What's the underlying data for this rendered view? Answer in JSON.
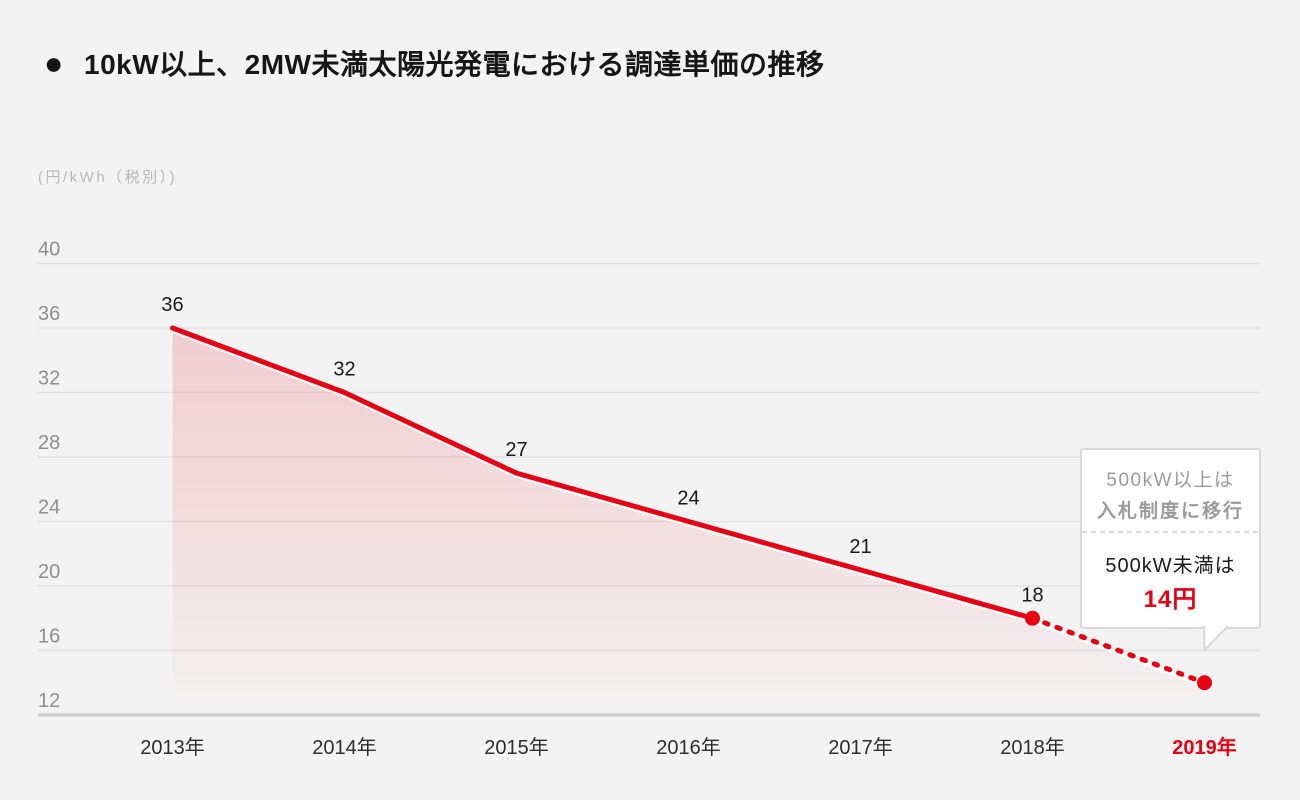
{
  "page": {
    "background_color": "#f3f3f3",
    "accent_color": "#e60012"
  },
  "header": {
    "bullet": "●",
    "title": "10kW以上、2MW未満太陽光発電における調達単価の推移"
  },
  "chart_data": {
    "type": "line",
    "title": "10kW以上、2MW未満太陽光発電における調達単価の推移",
    "ylabel": "(円/kWh（税別）)",
    "categories": [
      "2013年",
      "2014年",
      "2015年",
      "2016年",
      "2017年",
      "2018年",
      "2019年"
    ],
    "values": [
      36,
      32,
      27,
      24,
      21,
      18,
      14
    ],
    "labeled_point_count": 6,
    "solid_until_index": 5,
    "dotted_segment": [
      5,
      6
    ],
    "end_dot_indices": [
      5,
      6
    ],
    "yticks": [
      40,
      36,
      32,
      28,
      24,
      20,
      16,
      12
    ],
    "ylim": [
      12,
      41
    ],
    "grid": true,
    "legend": "none",
    "line_color": "#e60012",
    "area_fill_color": "#e60012",
    "highlight_last_category": true,
    "highlight_color": "#e60012"
  },
  "callout": {
    "line1": "500kW以上は",
    "line2": "入札制度に移行",
    "line3": "500kW未満は",
    "value": "14円"
  }
}
